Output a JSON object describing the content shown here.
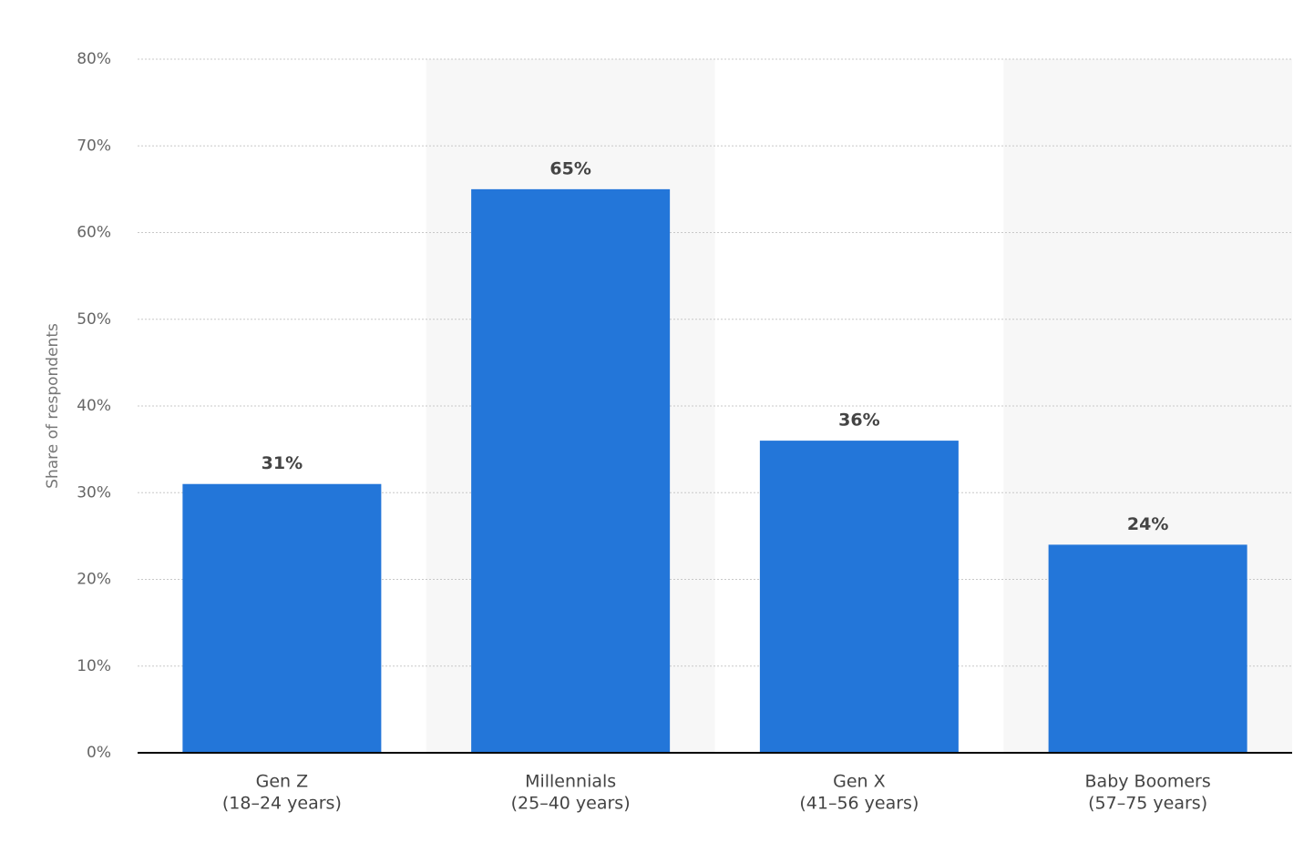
{
  "chart_data": {
    "type": "bar",
    "y_label": "Share of respondents",
    "categories": [
      [
        "Gen Z",
        "(18–24 years)"
      ],
      [
        "Millennials",
        "(25–40 years)"
      ],
      [
        "Gen X",
        "(41–56 years)"
      ],
      [
        "Baby Boomers",
        "(57–75 years)"
      ]
    ],
    "values": [
      31,
      65,
      36,
      24
    ],
    "value_labels": [
      "31%",
      "65%",
      "36%",
      "24%"
    ],
    "color": "#2376d9",
    "ylim": [
      0,
      80
    ],
    "yticks": [
      {
        "value": 0,
        "label": "0%"
      },
      {
        "value": 10,
        "label": "10%"
      },
      {
        "value": 20,
        "label": "20%"
      },
      {
        "value": 30,
        "label": "30%"
      },
      {
        "value": 40,
        "label": "40%"
      },
      {
        "value": 50,
        "label": "50%"
      },
      {
        "value": 60,
        "label": "60%"
      },
      {
        "value": 70,
        "label": "70%"
      },
      {
        "value": 80,
        "label": "80%"
      }
    ],
    "grid": true
  }
}
